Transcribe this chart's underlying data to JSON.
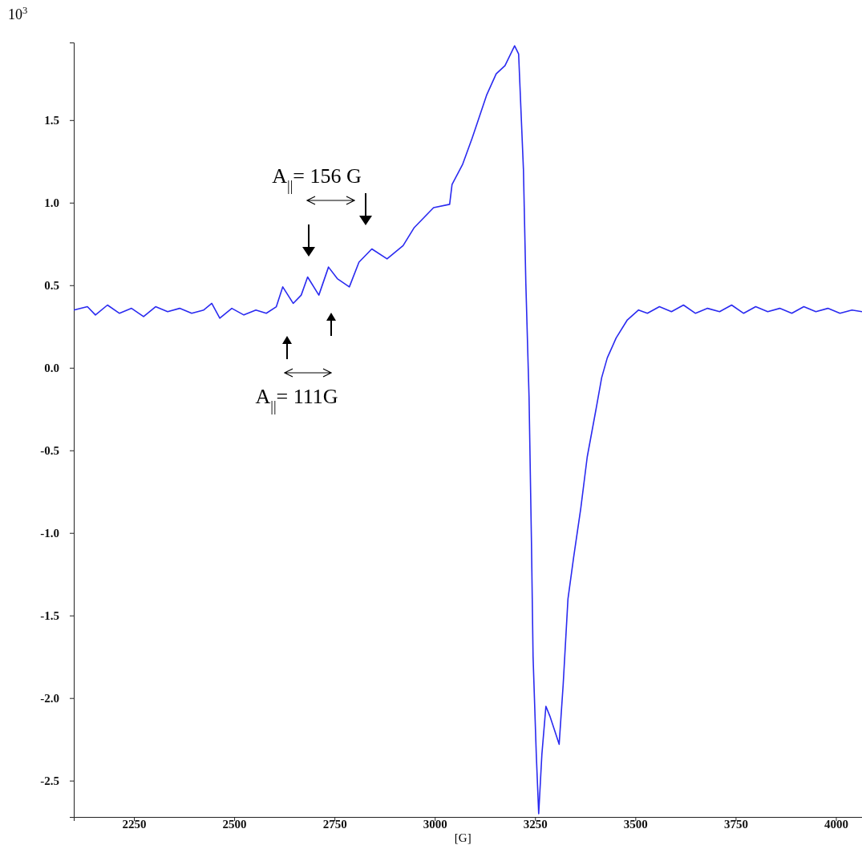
{
  "chart_data": {
    "type": "line",
    "ylabel": "10$^{3}$",
    "xlabel": "[G]",
    "annotations": [
      "A$_{||}$= 156 G",
      "A$_{||}$= 111G"
    ],
    "x": [
      2100,
      2134,
      2154,
      2184,
      2214,
      2244,
      2274,
      2304,
      2334,
      2364,
      2394,
      2424,
      2444,
      2464,
      2494,
      2524,
      2554,
      2580,
      2605,
      2621,
      2647,
      2667,
      2683,
      2711,
      2735,
      2757,
      2787,
      2811,
      2843,
      2881,
      2921,
      2949,
      2997,
      3037,
      3043,
      3069,
      3093,
      3107,
      3129,
      3153,
      3175,
      3199,
      3209,
      3221,
      3227,
      3235,
      3241,
      3245,
      3253,
      3259,
      3267,
      3277,
      3287,
      3310,
      3320,
      3332,
      3346,
      3364,
      3380,
      3402,
      3416,
      3430,
      3452,
      3480,
      3508,
      3530,
      3560,
      3590,
      3620,
      3650,
      3680,
      3710,
      3740,
      3770,
      3800,
      3830,
      3860,
      3890,
      3920,
      3950,
      3980,
      4010,
      4040,
      4065
    ],
    "series": [
      {
        "color": "#2a2af0",
        "values": [
          0.35,
          0.37,
          0.32,
          0.38,
          0.33,
          0.36,
          0.31,
          0.37,
          0.34,
          0.36,
          0.33,
          0.35,
          0.39,
          0.3,
          0.36,
          0.32,
          0.35,
          0.33,
          0.37,
          0.49,
          0.39,
          0.44,
          0.55,
          0.44,
          0.61,
          0.54,
          0.49,
          0.64,
          0.72,
          0.66,
          0.74,
          0.85,
          0.97,
          0.99,
          1.11,
          1.23,
          1.39,
          1.49,
          1.65,
          1.78,
          1.83,
          1.95,
          1.9,
          1.2,
          0.51,
          -0.18,
          -1.06,
          -1.75,
          -2.34,
          -2.7,
          -2.34,
          -2.05,
          -2.11,
          -2.28,
          -1.92,
          -1.4,
          -1.15,
          -0.85,
          -0.54,
          -0.25,
          -0.06,
          0.06,
          0.18,
          0.29,
          0.35,
          0.33,
          0.37,
          0.34,
          0.38,
          0.33,
          0.36,
          0.34,
          0.38,
          0.33,
          0.37,
          0.34,
          0.36,
          0.33,
          0.37,
          0.34,
          0.36,
          0.33,
          0.35,
          0.34
        ]
      }
    ],
    "xlim": [
      2100,
      4065
    ],
    "ylim": [
      -2.72,
      1.97
    ],
    "xticks": [
      2250,
      2500,
      2750,
      3000,
      3250,
      3500,
      3750,
      4000
    ],
    "yticks": [
      -2.5,
      {
        "value": -2,
        "label": "-2.0"
      },
      -1.5,
      {
        "value": -1,
        "label": "-1.0"
      },
      -0.5,
      {
        "value": 0,
        "label": "0.0"
      },
      0.5,
      {
        "value": 1,
        "label": "1.0"
      },
      1.5
    ],
    "marker": "none",
    "line_style": "solid"
  }
}
